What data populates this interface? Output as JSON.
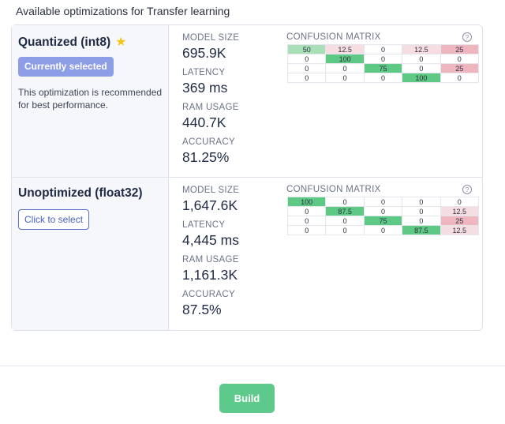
{
  "page_title": "Available optimizations for Transfer learning",
  "colors": {
    "high_green": "#5ec985",
    "low_green": "#a8dfb7",
    "low_red": "#f5dde1",
    "high_red": "#efb6bf",
    "accent_blue": "#8d9de6",
    "build_green": "#5dc98a"
  },
  "options": [
    {
      "name": "Quantized (int8)",
      "star_icon": "star-icon",
      "button_label": "Currently selected",
      "selected": true,
      "note": "This optimization is recommended for best performance.",
      "metrics": [
        {
          "label": "MODEL SIZE",
          "value": "695.9K"
        },
        {
          "label": "LATENCY",
          "value": "369 ms"
        },
        {
          "label": "RAM USAGE",
          "value": "440.7K"
        },
        {
          "label": "ACCURACY",
          "value": "81.25%"
        }
      ],
      "confusion_title": "CONFUSION MATRIX",
      "help_icon": "?",
      "matrix": [
        [
          "50",
          "12.5",
          "0",
          "12.5",
          "25"
        ],
        [
          "0",
          "100",
          "0",
          "0",
          "0"
        ],
        [
          "0",
          "0",
          "75",
          "0",
          "25"
        ],
        [
          "0",
          "0",
          "0",
          "100",
          "0"
        ]
      ]
    },
    {
      "name": "Unoptimized (float32)",
      "button_label": "Click to select",
      "selected": false,
      "metrics": [
        {
          "label": "MODEL SIZE",
          "value": "1,647.6K"
        },
        {
          "label": "LATENCY",
          "value": "4,445 ms"
        },
        {
          "label": "RAM USAGE",
          "value": "1,161.3K"
        },
        {
          "label": "ACCURACY",
          "value": "87.5%"
        }
      ],
      "confusion_title": "CONFUSION MATRIX",
      "help_icon": "?",
      "matrix": [
        [
          "100",
          "0",
          "0",
          "0",
          "0"
        ],
        [
          "0",
          "87.5",
          "0",
          "0",
          "12.5"
        ],
        [
          "0",
          "0",
          "75",
          "0",
          "25"
        ],
        [
          "0",
          "0",
          "0",
          "87.5",
          "12.5"
        ]
      ]
    }
  ],
  "build_label": "Build"
}
